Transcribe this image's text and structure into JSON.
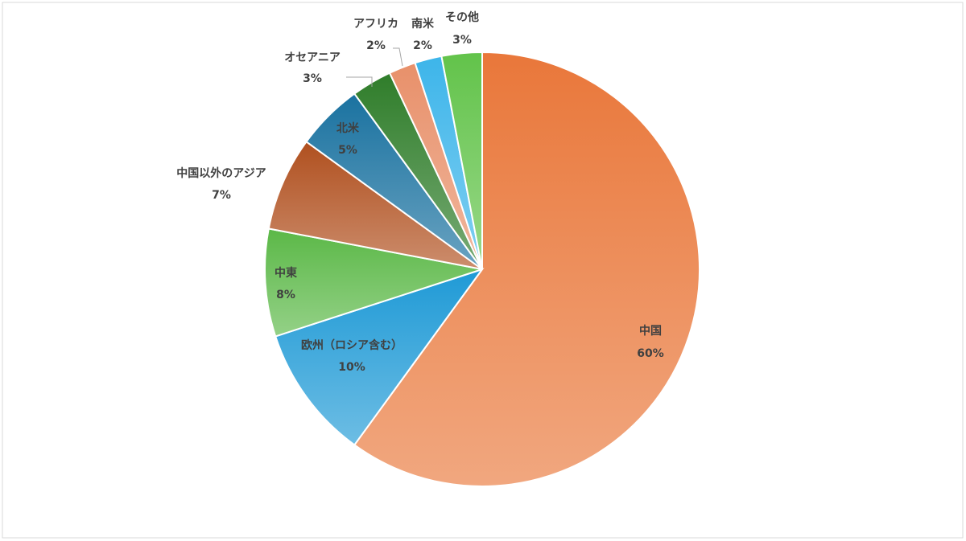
{
  "chart_data": {
    "type": "pie",
    "categories": [
      "中国",
      "欧州（ロシア含む）",
      "中東",
      "中国以外のアジア",
      "北米",
      "オセアニア",
      "アフリカ",
      "南米",
      "その他"
    ],
    "values": [
      60,
      10,
      8,
      7,
      5,
      3,
      2,
      2,
      3
    ],
    "value_labels": [
      "60%",
      "10%",
      "8%",
      "7%",
      "5%",
      "3%",
      "2%",
      "2%",
      "3%"
    ],
    "colors": [
      "#e9773a",
      "#1f9ad6",
      "#5bb847",
      "#b0501f",
      "#1a72a0",
      "#2f7d2a",
      "#e8906a",
      "#3db5ea",
      "#62c34a"
    ]
  }
}
